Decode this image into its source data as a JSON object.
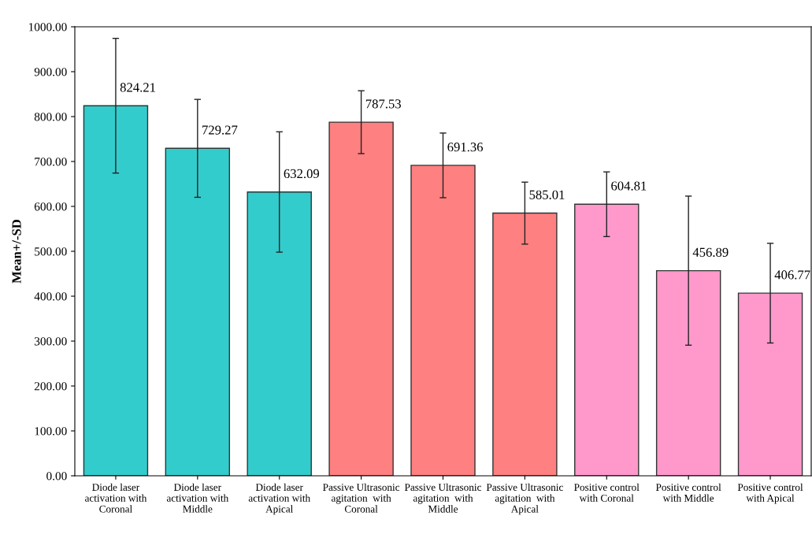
{
  "chart_data": {
    "type": "bar",
    "ylabel": "Mean+/-SD",
    "categories": [
      "Diode laser\nactivation with\nCoronal",
      "Diode laser\nactivation with\nMiddle",
      "Diode laser\nactivation with\nApical",
      "Passive Ultrasonic\nagitation  with\nCoronal",
      "Passive Ultrasonic\nagitation  with\nMiddle",
      "Passive Ultrasonic\nagitation  with\nApical",
      "Positive control\nwith Coronal",
      "Positive control\nwith Middle",
      "Positive control\nwith Apical"
    ],
    "values": [
      824.21,
      729.27,
      632.09,
      787.53,
      691.36,
      585.01,
      604.81,
      456.89,
      406.77
    ],
    "errors": [
      150,
      109,
      134,
      70,
      72,
      69,
      72,
      166,
      111
    ],
    "colors": [
      "#33cccc",
      "#33cccc",
      "#33cccc",
      "#ff8080",
      "#ff8080",
      "#ff8080",
      "#ff99cc",
      "#ff99cc",
      "#ff99cc"
    ],
    "data_labels": true,
    "grid": false,
    "legend": false,
    "ylim": [
      0,
      1000
    ],
    "yticks": [
      {
        "value": 0,
        "label": "0.00"
      },
      {
        "value": 100,
        "label": "100.00"
      },
      {
        "value": 200,
        "label": "200.00"
      },
      {
        "value": 300,
        "label": "300.00"
      },
      {
        "value": 400,
        "label": "400.00"
      },
      {
        "value": 500,
        "label": "500.00"
      },
      {
        "value": 600,
        "label": "600.00"
      },
      {
        "value": 700,
        "label": "700.00"
      },
      {
        "value": 800,
        "label": "800.00"
      },
      {
        "value": 900,
        "label": "900.00"
      },
      {
        "value": 1000,
        "label": "1000.00"
      }
    ]
  }
}
